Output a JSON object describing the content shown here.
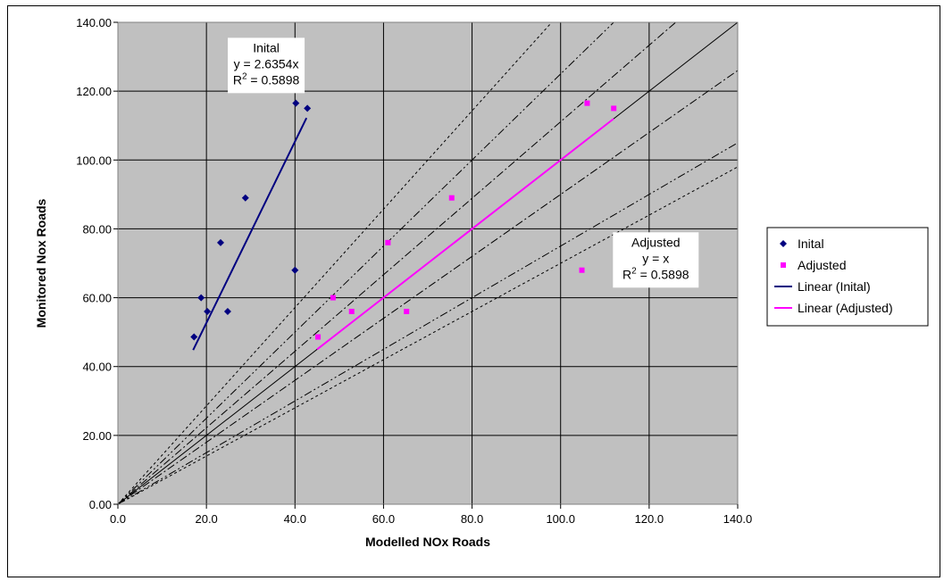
{
  "chart_data": {
    "type": "scatter",
    "title": "",
    "xlabel": "Modelled NOx Roads",
    "ylabel": "Monitored Nox Roads",
    "xlim": [
      0,
      140
    ],
    "ylim": [
      0,
      140
    ],
    "x_ticks": [
      "0.0",
      "20.0",
      "40.0",
      "60.0",
      "80.0",
      "100.0",
      "120.0",
      "140.0"
    ],
    "y_ticks": [
      "0.00",
      "20.00",
      "40.00",
      "60.00",
      "80.00",
      "100.00",
      "120.00",
      "140.00"
    ],
    "grid": true,
    "plot_background": "#c0c0c0",
    "series": [
      {
        "name": "Inital",
        "marker": "diamond",
        "color": "#000080",
        "points": [
          [
            17.2,
            48.6
          ],
          [
            18.8,
            60.0
          ],
          [
            20.2,
            56.0
          ],
          [
            23.2,
            76.0
          ],
          [
            24.8,
            56.0
          ],
          [
            28.8,
            89.0
          ],
          [
            40.0,
            68.0
          ],
          [
            40.2,
            116.5
          ],
          [
            42.8,
            115.0
          ]
        ]
      },
      {
        "name": "Adjusted",
        "marker": "square",
        "color": "#ff00ff",
        "points": [
          [
            45.2,
            48.6
          ],
          [
            48.6,
            60.0
          ],
          [
            52.8,
            56.0
          ],
          [
            61.0,
            76.0
          ],
          [
            65.2,
            56.0
          ],
          [
            75.4,
            89.0
          ],
          [
            104.8,
            68.0
          ],
          [
            106.0,
            116.5
          ],
          [
            112.0,
            115.0
          ]
        ]
      },
      {
        "name": "Linear (Inital)",
        "type": "line",
        "color": "#000080",
        "points": [
          [
            17.0,
            44.8
          ],
          [
            42.6,
            112.2
          ]
        ]
      },
      {
        "name": "Linear (Adjusted)",
        "type": "line",
        "color": "#ff00ff",
        "points": [
          [
            45.0,
            45.0
          ],
          [
            112.0,
            112.0
          ]
        ]
      }
    ],
    "reference_lines": [
      {
        "style": "solid",
        "slope": 1.0
      },
      {
        "style": "dashdot",
        "slope": 1.1111
      },
      {
        "style": "dashdot",
        "slope": 0.9
      },
      {
        "style": "dashdotdot",
        "slope": 1.25
      },
      {
        "style": "dashdotdot",
        "slope": 0.75
      },
      {
        "style": "dotted",
        "slope": 1.4286
      },
      {
        "style": "dotted",
        "slope": 0.7
      }
    ],
    "annotations": [
      {
        "lines": [
          "Inital",
          "y = 2.6354x",
          "R2 = 0.5898"
        ],
        "anchor_x": 33.5,
        "anchor_y": 135.5
      },
      {
        "lines": [
          "Adjusted",
          "y = x",
          "R2 = 0.5898"
        ],
        "anchor_x": 121.5,
        "anchor_y": 79.0
      }
    ],
    "legend": {
      "placement": "right",
      "entries": [
        "Inital",
        "Adjusted",
        "Linear (Inital)",
        "Linear (Adjusted)"
      ]
    }
  }
}
